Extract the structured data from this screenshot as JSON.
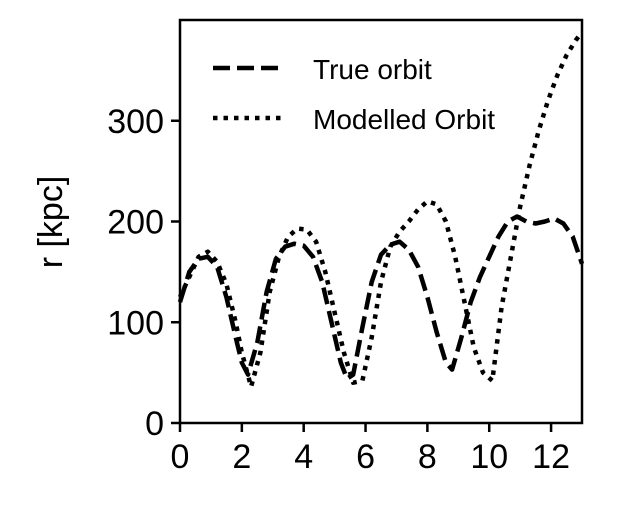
{
  "chart_data": {
    "type": "line",
    "title": "",
    "xlabel": "",
    "ylabel": "r [kpc]",
    "xlim": [
      0,
      13
    ],
    "ylim": [
      0,
      400
    ],
    "xticks": [
      0,
      2,
      4,
      6,
      8,
      10,
      12
    ],
    "yticks": [
      0,
      100,
      200,
      300
    ],
    "grid": false,
    "legend_position": "top-left",
    "series": [
      {
        "name": "True orbit",
        "style": "dashed",
        "color": "#000000",
        "x": [
          0,
          0.3,
          0.6,
          0.9,
          1.2,
          1.5,
          1.8,
          2.0,
          2.2,
          2.5,
          2.8,
          3.1,
          3.4,
          3.7,
          4.0,
          4.3,
          4.6,
          4.9,
          5.2,
          5.4,
          5.6,
          5.9,
          6.2,
          6.5,
          6.8,
          7.1,
          7.4,
          7.7,
          8.0,
          8.3,
          8.6,
          8.8,
          9.1,
          9.4,
          9.7,
          10.0,
          10.3,
          10.6,
          10.9,
          11.2,
          11.5,
          11.8,
          12.1,
          12.4,
          12.7,
          13.0
        ],
        "y": [
          120,
          150,
          163,
          165,
          155,
          125,
          85,
          60,
          48,
          80,
          130,
          163,
          175,
          178,
          176,
          165,
          140,
          100,
          60,
          44,
          48,
          95,
          140,
          167,
          177,
          180,
          172,
          155,
          125,
          90,
          60,
          53,
          85,
          120,
          145,
          165,
          185,
          200,
          205,
          200,
          198,
          200,
          203,
          198,
          185,
          158
        ]
      },
      {
        "name": "Modelled Orbit",
        "style": "dotted",
        "color": "#000000",
        "x": [
          0,
          0.3,
          0.6,
          0.9,
          1.2,
          1.5,
          1.8,
          2.0,
          2.3,
          2.6,
          2.9,
          3.2,
          3.5,
          3.8,
          4.1,
          4.4,
          4.7,
          5.0,
          5.3,
          5.6,
          5.9,
          6.2,
          6.5,
          6.8,
          7.1,
          7.4,
          7.7,
          8.0,
          8.3,
          8.6,
          8.9,
          9.2,
          9.5,
          9.8,
          10.1,
          10.4,
          10.7,
          11.0,
          11.3,
          11.6,
          11.9,
          12.2,
          12.5,
          12.8,
          13.0
        ],
        "y": [
          125,
          145,
          165,
          170,
          160,
          138,
          100,
          70,
          36,
          70,
          130,
          165,
          185,
          193,
          192,
          180,
          150,
          110,
          70,
          40,
          42,
          85,
          140,
          175,
          190,
          200,
          212,
          220,
          217,
          200,
          165,
          120,
          75,
          50,
          42,
          115,
          165,
          215,
          255,
          290,
          320,
          345,
          365,
          380,
          388
        ]
      }
    ]
  }
}
